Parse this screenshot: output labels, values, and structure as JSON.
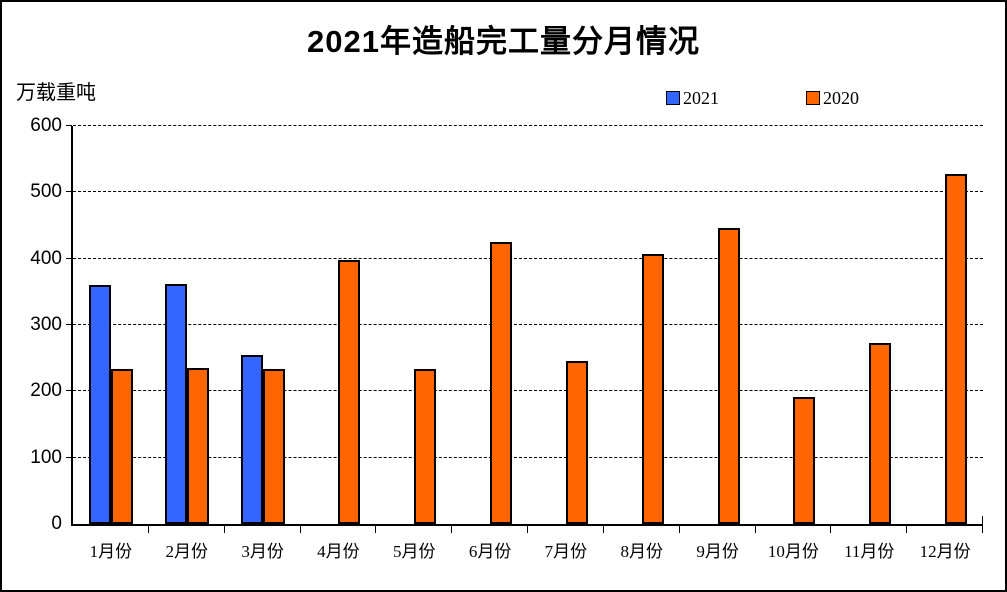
{
  "page": {
    "title": "2021年造船完工量分月情况",
    "unit_label": "万载重吨"
  },
  "legend": {
    "items": [
      {
        "label": "2021",
        "color": "#3366FF"
      },
      {
        "label": "2020",
        "color": "#FF6600"
      }
    ]
  },
  "chart_data": {
    "type": "bar",
    "title": "2021年造船完工量分月情况",
    "xlabel": "",
    "ylabel": "万载重吨",
    "categories": [
      "1月份",
      "2月份",
      "3月份",
      "4月份",
      "5月份",
      "6月份",
      "7月份",
      "8月份",
      "9月份",
      "10月份",
      "11月份",
      "12月份"
    ],
    "series": [
      {
        "name": "2021",
        "color": "#3366FF",
        "values": [
          360,
          362,
          255,
          null,
          null,
          null,
          null,
          null,
          null,
          null,
          null,
          null
        ]
      },
      {
        "name": "2020",
        "color": "#FF6600",
        "values": [
          233,
          235,
          233,
          398,
          234,
          425,
          245,
          407,
          446,
          192,
          273,
          528
        ]
      }
    ],
    "ylim": [
      0,
      600
    ],
    "ytick_interval": 100,
    "grid": true,
    "gridline_style": "dashed",
    "legend_position": "top-right",
    "bar_border_color": "#000000"
  }
}
